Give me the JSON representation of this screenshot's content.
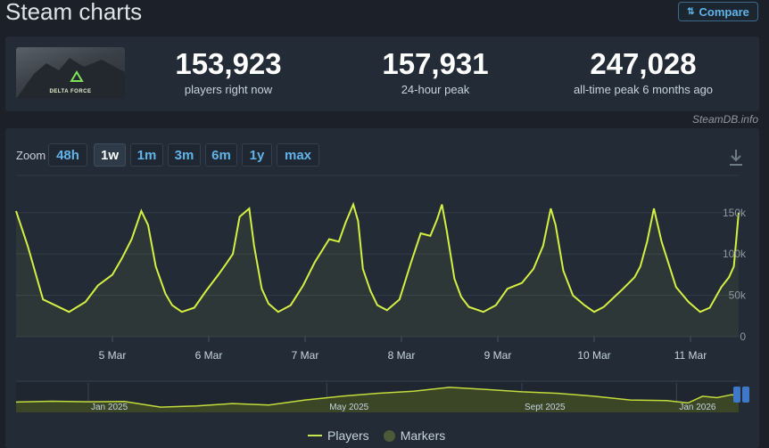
{
  "page": {
    "title": "Steam charts",
    "compare_label": "Compare",
    "credit": "SteamDB.info"
  },
  "game": {
    "logo_text": "DELTA FORCE"
  },
  "stats": [
    {
      "value": "153,923",
      "label": "players right now"
    },
    {
      "value": "157,931",
      "label": "24-hour peak"
    },
    {
      "value": "247,028",
      "label": "all-time peak 6 months ago"
    }
  ],
  "zoom": {
    "label": "Zoom",
    "options": [
      "48h",
      "1w",
      "1m",
      "3m",
      "6m",
      "1y",
      "max"
    ],
    "active": "1w"
  },
  "legend": {
    "players": "Players",
    "markers": "Markers"
  },
  "colors": {
    "series": "#d4f043",
    "background": "#1b2029",
    "panel": "#232b36",
    "link": "#62b3e8"
  },
  "chart_data": [
    {
      "type": "line",
      "series": [
        {
          "name": "Players",
          "x": [
            4.0,
            4.12,
            4.28,
            4.55,
            4.72,
            4.85,
            5.0,
            5.1,
            5.2,
            5.3,
            5.37,
            5.45,
            5.55,
            5.62,
            5.72,
            5.85,
            5.97,
            6.1,
            6.18,
            6.25,
            6.32,
            6.42,
            6.47,
            6.55,
            6.62,
            6.72,
            6.85,
            6.98,
            7.1,
            7.25,
            7.35,
            7.42,
            7.5,
            7.55,
            7.6,
            7.68,
            7.75,
            7.85,
            7.98,
            8.1,
            8.2,
            8.3,
            8.37,
            8.42,
            8.47,
            8.55,
            8.62,
            8.7,
            8.85,
            8.98,
            9.1,
            9.25,
            9.37,
            9.47,
            9.55,
            9.6,
            9.68,
            9.78,
            9.9,
            10.0,
            10.1,
            10.3,
            10.42,
            10.48,
            10.55,
            10.62,
            10.7,
            10.85,
            10.98,
            11.1,
            11.2,
            11.32,
            11.4,
            11.45,
            11.5
          ],
          "values": [
            152000,
            110000,
            45000,
            30000,
            42000,
            62000,
            75000,
            95000,
            118000,
            152000,
            135000,
            85000,
            52000,
            38000,
            30000,
            35000,
            55000,
            75000,
            88000,
            100000,
            145000,
            155000,
            110000,
            58000,
            40000,
            30000,
            38000,
            62000,
            90000,
            118000,
            115000,
            138000,
            160000,
            140000,
            82000,
            55000,
            38000,
            32000,
            45000,
            90000,
            125000,
            122000,
            142000,
            160000,
            128000,
            70000,
            48000,
            36000,
            30000,
            38000,
            58000,
            65000,
            82000,
            110000,
            155000,
            135000,
            80000,
            50000,
            38000,
            30000,
            36000,
            58000,
            72000,
            85000,
            115000,
            155000,
            115000,
            60000,
            42000,
            30000,
            35000,
            60000,
            72000,
            85000,
            150000
          ]
        }
      ],
      "x_tick_labels": [
        "5 Mar",
        "6 Mar",
        "7 Mar",
        "8 Mar",
        "9 Mar",
        "10 Mar",
        "11 Mar"
      ],
      "x_ticks": [
        5,
        6,
        7,
        8,
        9,
        10,
        11
      ],
      "xlim": [
        4.0,
        11.5
      ],
      "y_ticks": [
        0,
        50000,
        100000,
        150000
      ],
      "y_tick_labels": [
        "0",
        "50k",
        "100k",
        "150k"
      ],
      "ylim": [
        0,
        195000
      ],
      "grid": true
    },
    {
      "type": "area",
      "series": [
        {
          "name": "Players",
          "x": [
            0.0,
            0.05,
            0.1,
            0.15,
            0.2,
            0.25,
            0.3,
            0.35,
            0.4,
            0.45,
            0.5,
            0.55,
            0.6,
            0.65,
            0.7,
            0.75,
            0.8,
            0.85,
            0.9,
            0.93,
            0.95,
            0.97,
            0.99,
            1.0
          ],
          "values": [
            0.35,
            0.38,
            0.36,
            0.37,
            0.18,
            0.22,
            0.3,
            0.25,
            0.42,
            0.55,
            0.65,
            0.72,
            0.85,
            0.78,
            0.7,
            0.65,
            0.55,
            0.42,
            0.4,
            0.32,
            0.55,
            0.5,
            0.6,
            0.58
          ]
        }
      ],
      "x_tick_labels": [
        "Jan 2025",
        "May 2025",
        "Sept 2025",
        "Jan 2026"
      ],
      "x_ticks": [
        0.1,
        0.43,
        0.7,
        0.914
      ],
      "xlim": [
        0,
        1
      ]
    }
  ]
}
